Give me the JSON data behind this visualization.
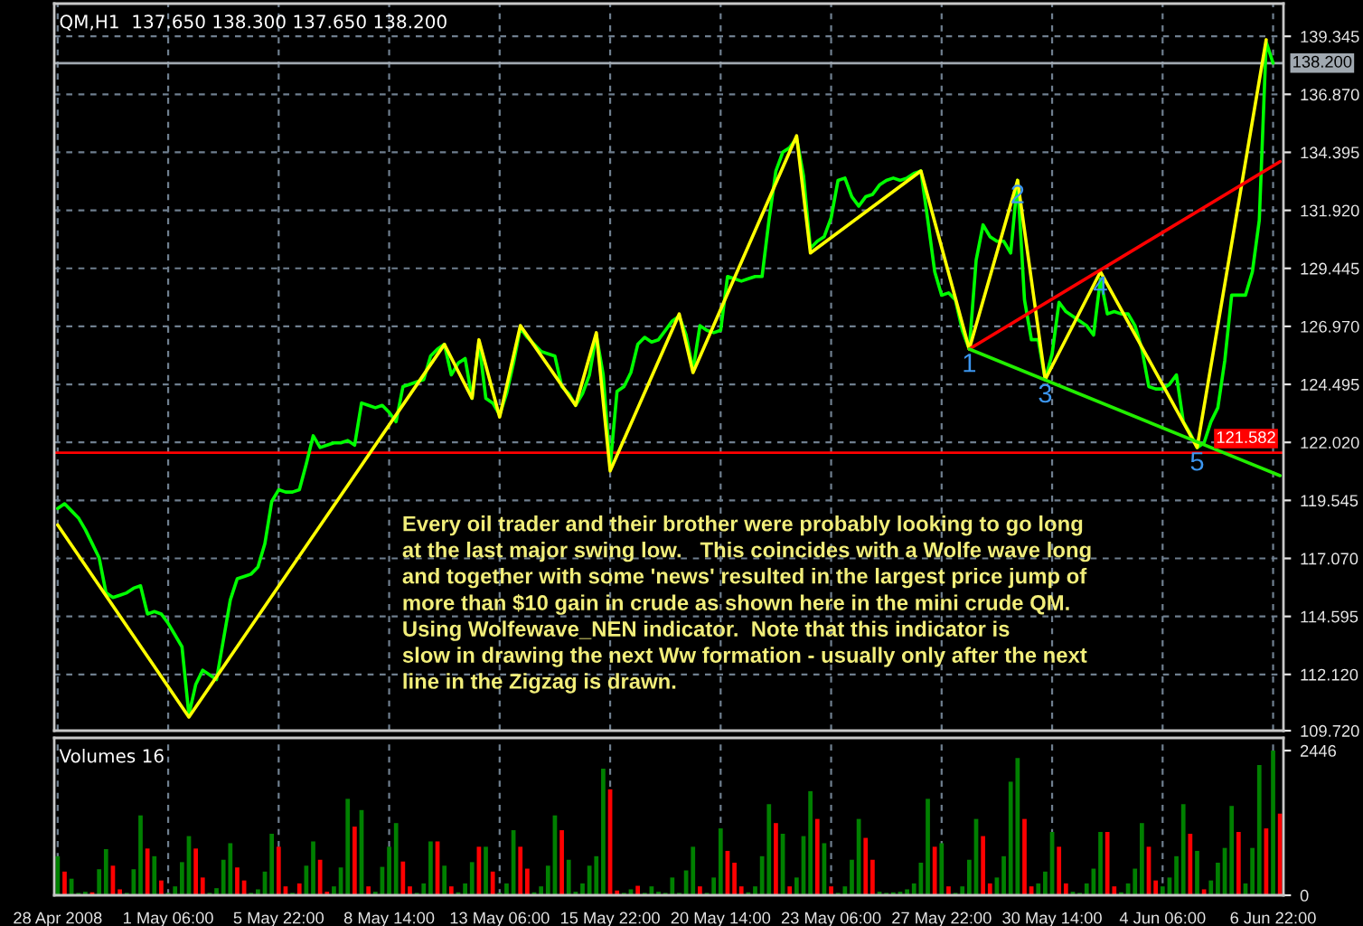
{
  "chart_data": [
    {
      "type": "line",
      "title": "QM,H1  137.650 138.300 137.650 138.200",
      "categories": [
        null,
        null,
        null,
        null,
        null,
        null,
        null,
        null,
        null,
        null,
        null,
        null,
        null,
        null,
        null,
        null,
        null,
        null,
        null,
        null,
        null,
        null,
        null,
        null,
        null,
        null,
        null,
        null,
        null,
        null,
        null,
        null,
        null,
        null,
        null,
        null,
        null,
        null,
        null,
        null,
        null,
        null,
        null,
        null,
        null,
        null,
        null,
        null,
        null,
        null,
        null,
        null,
        null,
        null,
        null,
        null,
        null,
        null,
        null,
        null,
        null,
        null,
        null,
        null,
        null,
        null,
        null,
        null,
        null,
        null,
        null,
        null,
        null,
        null,
        null,
        null,
        null,
        null,
        null,
        null,
        null,
        null,
        null,
        null,
        null,
        null,
        null,
        null,
        null,
        null,
        null,
        null,
        null,
        null,
        null,
        null,
        null,
        null,
        null,
        null,
        null,
        null,
        null,
        null,
        null,
        null,
        null,
        null,
        null,
        null,
        null,
        null,
        null,
        null,
        null,
        null,
        null,
        null,
        null,
        null,
        null,
        null,
        null,
        null,
        null,
        null,
        null,
        null,
        null,
        null,
        null,
        null,
        null,
        null,
        null,
        null,
        null,
        null,
        null,
        null,
        null,
        null,
        null,
        null,
        null,
        null,
        null,
        null,
        null,
        null,
        null,
        null,
        null,
        null,
        null,
        null,
        null,
        null,
        null,
        null,
        null,
        null,
        null,
        null,
        null,
        null,
        null,
        null,
        null,
        null,
        null,
        null,
        null,
        null,
        null,
        null,
        null,
        null
      ],
      "ylim": [
        109.72,
        140.74
      ],
      "yticks": [
        {
          "value": 109.72,
          "label": "109.720"
        },
        {
          "value": 112.12,
          "label": "112.120"
        },
        114.595,
        {
          "value": 117.07,
          "label": "117.070"
        },
        119.545,
        {
          "value": 122.02,
          "label": "122.020"
        },
        124.495,
        {
          "value": 126.97,
          "label": "126.970"
        },
        129.445,
        {
          "value": 131.92,
          "label": "131.920"
        },
        134.395,
        {
          "value": 136.87,
          "label": "136.870"
        },
        139.345
      ],
      "tick_labels": "y",
      "grid": true,
      "series": [
        {
          "color": "#00ff00",
          "values": [
            119.2,
            119.4,
            119.1,
            118.8,
            118.3,
            117.7,
            117.1,
            115.6,
            115.4,
            115.5,
            115.6,
            115.8,
            115.9,
            114.7,
            114.8,
            114.7,
            114.3,
            113.8,
            113.3,
            110.4,
            111.7,
            112.3,
            112.1,
            111.9,
            113.6,
            115.3,
            116.2,
            116.3,
            116.4,
            116.7,
            117.7,
            119.5,
            120.0,
            119.9,
            119.9,
            120.0,
            121.1,
            122.3,
            121.8,
            121.9,
            122.0,
            122.0,
            122.1,
            121.9,
            123.7,
            123.6,
            123.5,
            123.6,
            123.3,
            122.9,
            124.4,
            124.5,
            124.6,
            124.7,
            125.7,
            126.0,
            126.2,
            124.9,
            125.4,
            125.6,
            123.9,
            126.3,
            123.9,
            123.7,
            123.2,
            124.1,
            125.4,
            126.9,
            126.5,
            126.2,
            125.9,
            125.8,
            125.7,
            124.4,
            124.1,
            123.6,
            124.1,
            124.9,
            126.6,
            124.9,
            121.0,
            124.2,
            124.4,
            125.0,
            126.2,
            126.5,
            126.3,
            126.4,
            126.8,
            127.2,
            127.4,
            126.6,
            125.1,
            127.0,
            126.8,
            126.7,
            126.8,
            129.1,
            129.0,
            128.9,
            129.0,
            129.1,
            129.1,
            131.5,
            133.6,
            134.4,
            134.6,
            135.0,
            133.4,
            130.3,
            130.6,
            130.8,
            131.6,
            133.2,
            133.3,
            132.5,
            132.1,
            132.5,
            132.6,
            133.0,
            133.2,
            133.3,
            133.2,
            133.3,
            133.5,
            133.6,
            131.5,
            129.3,
            128.3,
            128.4,
            128.1,
            126.8,
            126.0,
            129.8,
            131.3,
            130.8,
            130.6,
            130.6,
            130.1,
            133.2,
            128.1,
            126.4,
            126.4,
            124.7,
            125.8,
            128.0,
            127.6,
            127.4,
            127.2,
            127.0,
            126.6,
            129.0,
            127.5,
            127.6,
            127.5,
            127.5,
            127.0,
            126.0,
            124.4,
            124.3,
            124.3,
            124.5,
            124.9,
            122.9,
            122.4,
            121.8,
            122.0,
            122.9,
            123.5,
            125.5,
            128.3,
            128.3,
            128.3,
            129.3,
            131.5,
            139.1,
            138.2,
            null
          ]
        },
        {
          "color": "#ffff00",
          "values": [
            118.5,
            null,
            null,
            null,
            null,
            null,
            null,
            null,
            null,
            null,
            null,
            null,
            null,
            null,
            null,
            null,
            null,
            null,
            null,
            110.3,
            null,
            null,
            null,
            null,
            null,
            null,
            null,
            null,
            null,
            null,
            null,
            null,
            null,
            null,
            null,
            null,
            null,
            null,
            null,
            null,
            null,
            null,
            null,
            null,
            null,
            null,
            null,
            null,
            null,
            null,
            null,
            null,
            null,
            null,
            null,
            null,
            126.2,
            null,
            null,
            null,
            123.9,
            126.4,
            null,
            null,
            123.1,
            null,
            null,
            127.0,
            null,
            null,
            null,
            null,
            null,
            null,
            null,
            123.6,
            null,
            null,
            126.7,
            null,
            120.8,
            null,
            null,
            null,
            null,
            null,
            null,
            null,
            null,
            null,
            127.5,
            null,
            125.0,
            null,
            null,
            null,
            null,
            null,
            null,
            null,
            null,
            null,
            null,
            null,
            null,
            null,
            null,
            135.1,
            null,
            130.1,
            null,
            null,
            null,
            null,
            null,
            null,
            null,
            null,
            null,
            null,
            null,
            null,
            null,
            null,
            null,
            133.6,
            null,
            null,
            null,
            null,
            null,
            null,
            126.0,
            null,
            null,
            null,
            null,
            null,
            null,
            133.2,
            null,
            null,
            null,
            124.7,
            null,
            null,
            null,
            null,
            null,
            null,
            null,
            129.3,
            null,
            null,
            null,
            null,
            null,
            null,
            null,
            null,
            null,
            null,
            null,
            null,
            null,
            121.8,
            null,
            null,
            null,
            null,
            null,
            null,
            null,
            null,
            null,
            139.2,
            null,
            null
          ]
        },
        {
          "color": "#ff0000",
          "values": [
            null,
            null,
            null,
            null,
            null,
            null,
            null,
            null,
            null,
            null,
            null,
            null,
            null,
            null,
            null,
            null,
            null,
            null,
            null,
            null,
            null,
            null,
            null,
            null,
            null,
            null,
            null,
            null,
            null,
            null,
            null,
            null,
            null,
            null,
            null,
            null,
            null,
            null,
            null,
            null,
            null,
            null,
            null,
            null,
            null,
            null,
            null,
            null,
            null,
            null,
            null,
            null,
            null,
            null,
            null,
            null,
            null,
            null,
            null,
            null,
            null,
            null,
            null,
            null,
            null,
            null,
            null,
            null,
            null,
            null,
            null,
            null,
            null,
            null,
            null,
            null,
            null,
            null,
            null,
            null,
            null,
            null,
            null,
            null,
            null,
            null,
            null,
            null,
            null,
            null,
            null,
            null,
            null,
            null,
            null,
            null,
            null,
            null,
            null,
            null,
            null,
            null,
            null,
            null,
            null,
            null,
            null,
            null,
            null,
            null,
            null,
            null,
            null,
            null,
            null,
            null,
            null,
            null,
            null,
            null,
            null,
            null,
            null,
            null,
            null,
            null,
            null,
            null,
            null,
            null,
            null,
            null,
            126.0,
            null,
            null,
            null,
            null,
            null,
            null,
            null,
            null,
            null,
            null,
            null,
            null,
            null,
            null,
            null,
            null,
            null,
            null,
            null,
            null,
            null,
            null,
            null,
            null,
            null,
            null,
            null,
            null,
            null,
            null,
            null,
            null,
            null,
            null,
            null,
            null,
            null,
            null,
            null,
            null,
            null,
            null,
            null,
            null,
            134.0
          ]
        },
        {
          "color": "#22ee00",
          "values": [
            null,
            null,
            null,
            null,
            null,
            null,
            null,
            null,
            null,
            null,
            null,
            null,
            null,
            null,
            null,
            null,
            null,
            null,
            null,
            null,
            null,
            null,
            null,
            null,
            null,
            null,
            null,
            null,
            null,
            null,
            null,
            null,
            null,
            null,
            null,
            null,
            null,
            null,
            null,
            null,
            null,
            null,
            null,
            null,
            null,
            null,
            null,
            null,
            null,
            null,
            null,
            null,
            null,
            null,
            null,
            null,
            null,
            null,
            null,
            null,
            null,
            null,
            null,
            null,
            null,
            null,
            null,
            null,
            null,
            null,
            null,
            null,
            null,
            null,
            null,
            null,
            null,
            null,
            null,
            null,
            null,
            null,
            null,
            null,
            null,
            null,
            null,
            null,
            null,
            null,
            null,
            null,
            null,
            null,
            null,
            null,
            null,
            null,
            null,
            null,
            null,
            null,
            null,
            null,
            null,
            null,
            null,
            null,
            null,
            null,
            null,
            null,
            null,
            null,
            null,
            null,
            null,
            null,
            null,
            null,
            null,
            null,
            null,
            null,
            null,
            null,
            null,
            null,
            null,
            null,
            null,
            null,
            126.0,
            null,
            null,
            null,
            null,
            null,
            null,
            null,
            null,
            null,
            null,
            null,
            null,
            null,
            null,
            null,
            null,
            null,
            null,
            null,
            null,
            null,
            null,
            null,
            null,
            null,
            null,
            null,
            null,
            null,
            null,
            null,
            null,
            null,
            null,
            null,
            null,
            null,
            null,
            null,
            null,
            null,
            null,
            null,
            null,
            120.6
          ]
        }
      ],
      "ref_lines": [
        {
          "axis": "y",
          "value": 138.2,
          "label": "138.200",
          "color": "#a0a8b0"
        },
        {
          "axis": "y",
          "value": 121.582,
          "label": "121.582",
          "color": "#ff0000"
        }
      ],
      "annotations": [
        "Every oil trader and their brother were probably looking to go long\nat the last major swing low.   This coincides with a Wolfe wave long\nand together with some 'news' resulted in the largest price jump of\nmore than $10 gain in crude as shown here in the mini crude QM.\nUsing Wolfewave_NEN indicator.  Note that this indicator is\nslow in drawing the next Ww formation - usually only after the next\nline in the Zigzag is drawn.",
        {
          "text": "1",
          "y": 126.0
        },
        {
          "text": "2",
          "y": 133.2
        },
        {
          "text": "3",
          "y": 124.7
        },
        {
          "text": "4",
          "y": 129.3
        },
        {
          "text": "5",
          "y": 121.8
        }
      ]
    },
    {
      "type": "bar",
      "title": "Volumes 16",
      "categories": [
        "28 Apr 2008",
        null,
        null,
        null,
        null,
        null,
        null,
        null,
        null,
        null,
        null,
        null,
        null,
        null,
        null,
        null,
        "1 May 06:00",
        null,
        null,
        null,
        null,
        null,
        null,
        null,
        null,
        null,
        null,
        null,
        null,
        null,
        null,
        null,
        "5 May 22:00",
        null,
        null,
        null,
        null,
        null,
        null,
        null,
        null,
        null,
        null,
        null,
        null,
        null,
        null,
        null,
        "8 May 14:00",
        null,
        null,
        null,
        null,
        null,
        null,
        null,
        null,
        null,
        null,
        null,
        null,
        null,
        null,
        null,
        "13 May 06:00",
        null,
        null,
        null,
        null,
        null,
        null,
        null,
        null,
        null,
        null,
        null,
        null,
        null,
        null,
        null,
        "15 May 22:00",
        null,
        null,
        null,
        null,
        null,
        null,
        null,
        null,
        null,
        null,
        null,
        null,
        null,
        null,
        null,
        "20 May 14:00",
        null,
        null,
        null,
        null,
        null,
        null,
        null,
        null,
        null,
        null,
        null,
        null,
        null,
        null,
        null,
        "23 May 06:00",
        null,
        null,
        null,
        null,
        null,
        null,
        null,
        null,
        null,
        null,
        null,
        null,
        null,
        null,
        null,
        "27 May 22:00",
        null,
        null,
        null,
        null,
        null,
        null,
        null,
        null,
        null,
        null,
        null,
        null,
        null,
        null,
        null,
        "30 May 14:00",
        null,
        null,
        null,
        null,
        null,
        null,
        null,
        null,
        null,
        null,
        null,
        null,
        null,
        null,
        null,
        "4 Jun 06:00",
        null,
        null,
        null,
        null,
        null,
        null,
        null,
        null,
        null,
        null,
        null,
        null,
        null,
        null,
        null,
        "6 Jun 22:00",
        null
      ],
      "ylim": [
        0,
        2660
      ],
      "yticks": [
        0,
        2446
      ],
      "grid": "x",
      "values": [
        660,
        400,
        280,
        40,
        60,
        50,
        440,
        780,
        500,
        100,
        40,
        440,
        1350,
        790,
        660,
        250,
        40,
        150,
        560,
        1000,
        790,
        300,
        40,
        120,
        600,
        880,
        470,
        250,
        40,
        100,
        400,
        1040,
        820,
        150,
        40,
        200,
        500,
        910,
        600,
        60,
        150,
        470,
        1630,
        1160,
        1440,
        150,
        60,
        480,
        820,
        1220,
        570,
        150,
        40,
        200,
        910,
        910,
        500,
        150,
        50,
        200,
        560,
        820,
        820,
        400,
        40,
        200,
        1100,
        820,
        450,
        50,
        150,
        500,
        1350,
        1100,
        600,
        60,
        200,
        500,
        660,
        2140,
        1790,
        80,
        40,
        100,
        160,
        40,
        150,
        60,
        40,
        300,
        40,
        420,
        820,
        150,
        40,
        300,
        1130,
        750,
        550,
        150,
        50,
        150,
        660,
        1540,
        1220,
        1040,
        150,
        300,
        1000,
        1760,
        1290,
        880,
        150,
        40,
        150,
        600,
        1290,
        970,
        600,
        60,
        40,
        50,
        60,
        100,
        200,
        550,
        1630,
        820,
        880,
        150,
        40,
        150,
        600,
        1290,
        1000,
        200,
        300,
        660,
        1920,
        2320,
        1290,
        150,
        200,
        400,
        1070,
        820,
        200,
        60,
        40,
        200,
        450,
        1070,
        1070,
        150,
        50,
        200,
        450,
        1220,
        820,
        250,
        150,
        300,
        660,
        1540,
        1040,
        750,
        100,
        250,
        550,
        800,
        1510,
        1070,
        200,
        800,
        2200,
        1130,
        2446,
        1380
      ],
      "colors": [
        "#008000",
        "#ff0000",
        "#008000",
        "#008000",
        "#008000",
        "#ff0000",
        "#008000",
        "#008000",
        "#ff0000",
        "#ff0000",
        "#008000",
        "#008000",
        "#008000",
        "#ff0000",
        "#008000",
        "#ff0000",
        "#008000",
        "#008000",
        "#008000",
        "#008000",
        "#ff0000",
        "#ff0000",
        "#008000",
        "#008000",
        "#008000",
        "#008000",
        "#ff0000",
        "#ff0000",
        "#008000",
        "#008000",
        "#008000",
        "#008000",
        "#ff0000",
        "#ff0000",
        "#008000",
        "#ff0000",
        "#008000",
        "#008000",
        "#ff0000",
        "#ff0000",
        "#008000",
        "#008000",
        "#008000",
        "#ff0000",
        "#008000",
        "#ff0000",
        "#008000",
        "#008000",
        "#008000",
        "#008000",
        "#ff0000",
        "#ff0000",
        "#008000",
        "#008000",
        "#008000",
        "#ff0000",
        "#008000",
        "#ff0000",
        "#008000",
        "#008000",
        "#008000",
        "#ff0000",
        "#008000",
        "#ff0000",
        "#008000",
        "#008000",
        "#008000",
        "#ff0000",
        "#ff0000",
        "#008000",
        "#008000",
        "#008000",
        "#008000",
        "#ff0000",
        "#008000",
        "#008000",
        "#008000",
        "#008000",
        "#008000",
        "#008000",
        "#ff0000",
        "#ff0000",
        "#008000",
        "#008000",
        "#ff0000",
        "#008000",
        "#008000",
        "#008000",
        "#008000",
        "#008000",
        "#008000",
        "#008000",
        "#008000",
        "#ff0000",
        "#008000",
        "#008000",
        "#008000",
        "#ff0000",
        "#ff0000",
        "#ff0000",
        "#008000",
        "#008000",
        "#008000",
        "#008000",
        "#ff0000",
        "#008000",
        "#ff0000",
        "#008000",
        "#008000",
        "#008000",
        "#ff0000",
        "#008000",
        "#ff0000",
        "#008000",
        "#008000",
        "#008000",
        "#008000",
        "#ff0000",
        "#ff0000",
        "#008000",
        "#008000",
        "#008000",
        "#008000",
        "#008000",
        "#008000",
        "#008000",
        "#008000",
        "#ff0000",
        "#008000",
        "#ff0000",
        "#008000",
        "#008000",
        "#008000",
        "#008000",
        "#ff0000",
        "#ff0000",
        "#008000",
        "#008000",
        "#008000",
        "#008000",
        "#ff0000",
        "#ff0000",
        "#008000",
        "#008000",
        "#008000",
        "#ff0000",
        "#ff0000",
        "#008000",
        "#008000",
        "#008000",
        "#008000",
        "#008000",
        "#ff0000",
        "#ff0000",
        "#008000",
        "#008000",
        "#008000",
        "#008000",
        "#ff0000",
        "#ff0000",
        "#008000",
        "#008000",
        "#008000",
        "#008000",
        "#ff0000",
        "#008000",
        "#ff0000",
        "#008000",
        "#008000",
        "#008000",
        "#008000",
        "#ff0000",
        "#008000",
        "#008000",
        "#008000",
        "#ff0000",
        "#008000",
        "#ff0000"
      ]
    }
  ]
}
